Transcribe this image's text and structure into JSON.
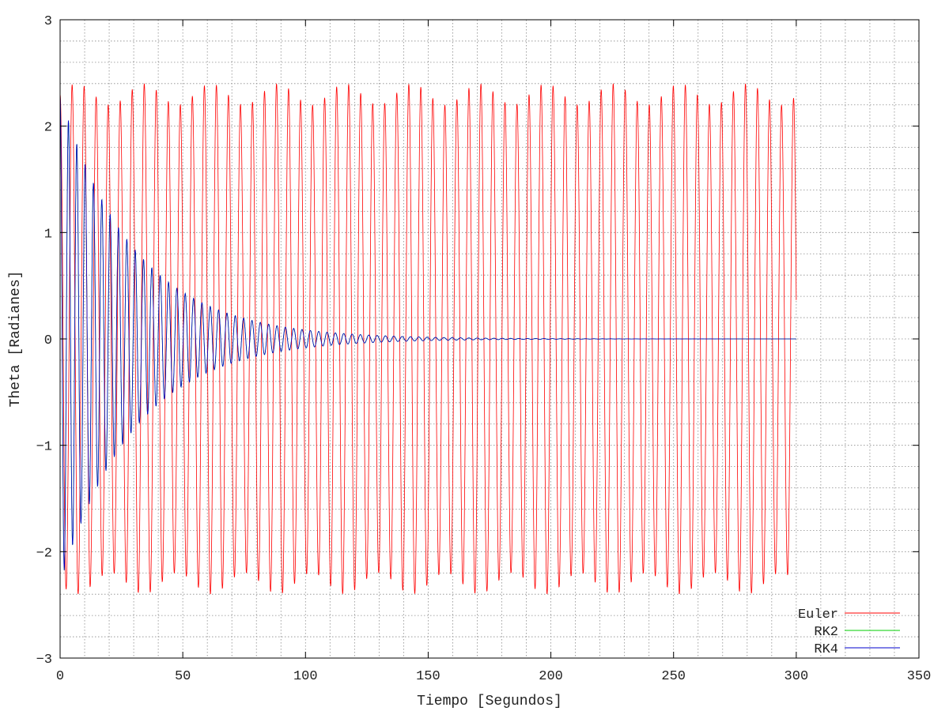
{
  "chart_data": {
    "type": "line",
    "xlabel": "Tiempo [Segundos]",
    "ylabel": "Theta [Radianes]",
    "xlim": [
      0,
      350
    ],
    "ylim": [
      -3,
      3
    ],
    "xticks": [
      0,
      50,
      100,
      150,
      200,
      250,
      300,
      350
    ],
    "yticks": [
      -3,
      -2,
      -1,
      0,
      1,
      2,
      3
    ],
    "x_minor_step": 10,
    "y_minor_step": 0.2,
    "grid": true,
    "legend_position": "bottom-right",
    "series": [
      {
        "name": "Euler",
        "color": "#ff0000",
        "x_range": [
          0,
          300
        ],
        "initial_theta": 2.3,
        "amplitude_range": [
          2.2,
          2.4
        ],
        "period_approx": 4.9,
        "behavior": "sustained oscillation"
      },
      {
        "name": "RK2",
        "color": "#00cc00",
        "x_range": [
          0,
          300
        ],
        "initial_theta": 2.3,
        "behavior": "damped oscillation, overlaps RK4"
      },
      {
        "name": "RK4",
        "color": "#0000cc",
        "x_range": [
          0,
          300
        ],
        "initial_theta": 2.3,
        "period_approx": 3.4,
        "decay_rate": 0.033,
        "behavior": "damped oscillation decaying to 0"
      }
    ]
  }
}
